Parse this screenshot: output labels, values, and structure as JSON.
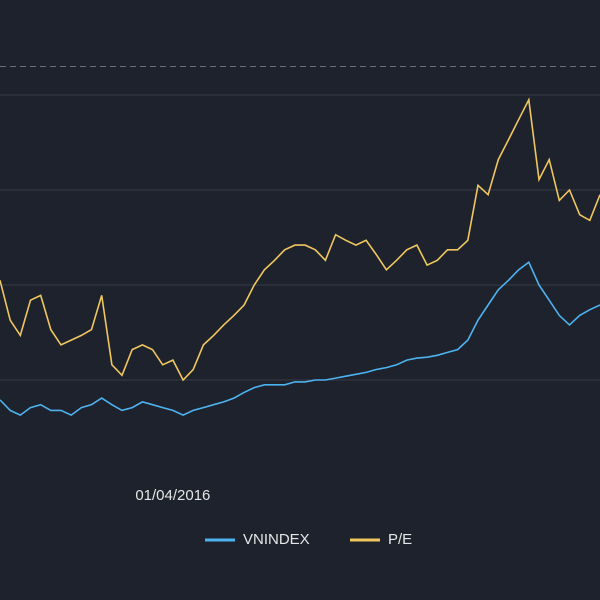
{
  "chart_data": {
    "type": "line",
    "categories": [
      null,
      null,
      null,
      null,
      null,
      null,
      null,
      null,
      null,
      null,
      null,
      null,
      null,
      null,
      null,
      null,
      null,
      "01/04/2016",
      null,
      null,
      null,
      null,
      null,
      null,
      null,
      null,
      null,
      null,
      null,
      null,
      null,
      null,
      null,
      null,
      null,
      null,
      null,
      null,
      null,
      null,
      null,
      null,
      null,
      null,
      null,
      null,
      null,
      null,
      null,
      null,
      null,
      null,
      null,
      null,
      null,
      null,
      null,
      null,
      null,
      null
    ],
    "series": [
      {
        "name": "VNINDEX",
        "color": "#4db3f0",
        "values": [
          0.79,
          0.68,
          0.63,
          0.71,
          0.74,
          0.68,
          0.68,
          0.63,
          0.71,
          0.74,
          0.81,
          0.74,
          0.68,
          0.71,
          0.77,
          0.74,
          0.71,
          0.68,
          0.63,
          0.68,
          0.71,
          0.74,
          0.77,
          0.81,
          0.87,
          0.92,
          0.95,
          0.95,
          0.95,
          0.98,
          0.98,
          1.0,
          1.0,
          1.02,
          1.04,
          1.06,
          1.08,
          1.11,
          1.13,
          1.16,
          1.21,
          1.23,
          1.24,
          1.26,
          1.29,
          1.32,
          1.42,
          1.63,
          1.79,
          1.95,
          2.05,
          2.16,
          2.24,
          2.0,
          1.84,
          1.68,
          1.58,
          1.68,
          1.74,
          1.79
        ]
      },
      {
        "name": "P/E",
        "color": "#f0c75e",
        "values": [
          2.05,
          1.63,
          1.47,
          1.84,
          1.89,
          1.53,
          1.37,
          1.42,
          1.47,
          1.53,
          1.89,
          1.16,
          1.05,
          1.32,
          1.37,
          1.32,
          1.16,
          1.21,
          1.0,
          1.11,
          1.37,
          1.47,
          1.58,
          1.68,
          1.79,
          2.0,
          2.16,
          2.26,
          2.37,
          2.42,
          2.42,
          2.37,
          2.26,
          2.53,
          2.47,
          2.42,
          2.47,
          2.32,
          2.16,
          2.26,
          2.37,
          2.42,
          2.21,
          2.26,
          2.37,
          2.37,
          2.47,
          3.05,
          2.95,
          3.32,
          3.53,
          3.74,
          3.95,
          3.11,
          3.32,
          2.89,
          3.0,
          2.74,
          2.68,
          2.95
        ]
      }
    ],
    "ylim": [
      0,
      5
    ],
    "grid_lines": [
      1,
      2,
      3,
      4
    ],
    "ref_line": 4.3
  }
}
